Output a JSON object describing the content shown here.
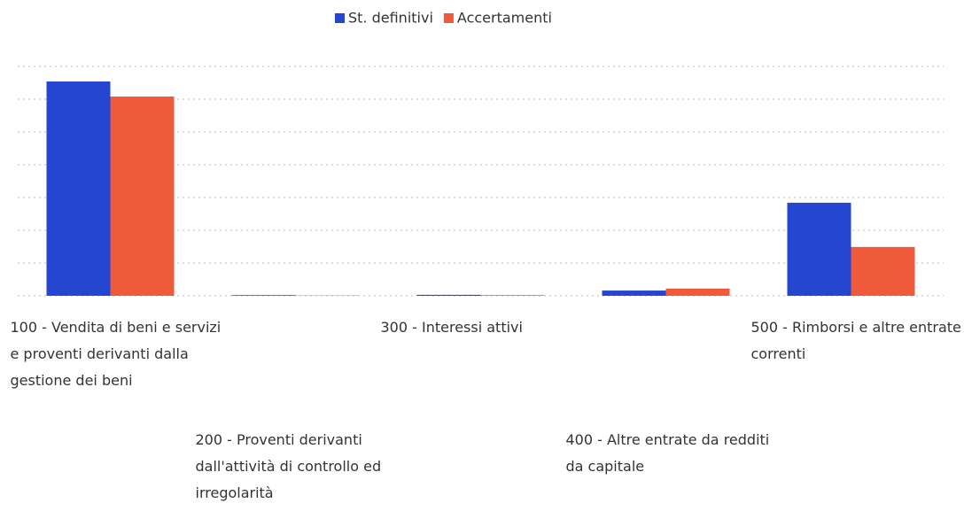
{
  "chart_data": {
    "type": "bar",
    "categories": [
      "100 - Vendita di beni e servizi e proventi derivanti dalla gestione dei beni",
      "200 - Proventi derivanti dall'attività di controllo ed irregolarità",
      "300 - Interessi attivi",
      "400 - Altre entrate da redditi da capitale",
      "500 - Rimborsi e altre entrate correnti"
    ],
    "series": [
      {
        "name": "St. definitivi",
        "color": "#2446d0",
        "values": [
          6.54,
          0.02,
          0.03,
          0.16,
          2.84
        ]
      },
      {
        "name": "Accertamenti",
        "color": "#ee5a3a",
        "values": [
          6.08,
          0.01,
          0.02,
          0.22,
          1.49
        ]
      }
    ],
    "ylim": [
      0,
      7
    ],
    "yticks": [
      0,
      1,
      2,
      3,
      4,
      5,
      6,
      7
    ],
    "grid": true,
    "legend": "top"
  }
}
